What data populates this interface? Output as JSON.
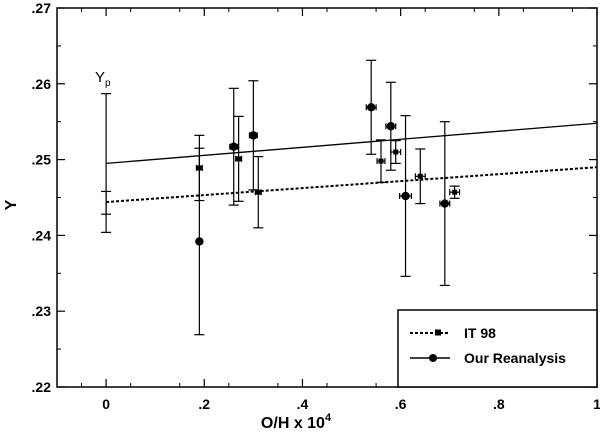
{
  "chart_data": {
    "type": "scatter",
    "xlabel": "O/H x 10",
    "xlabel_superscript": "4",
    "ylabel": "Y",
    "annotation": {
      "text": "Y",
      "subscript": "p"
    },
    "xlim": [
      -0.1,
      1.0
    ],
    "ylim": [
      0.22,
      0.27
    ],
    "x_ticks": [
      0,
      0.2,
      0.4,
      0.6,
      0.8,
      1.0
    ],
    "x_tick_labels": [
      "0",
      ".2",
      ".4",
      ".6",
      ".8",
      "1"
    ],
    "y_ticks": [
      0.22,
      0.23,
      0.24,
      0.25,
      0.26,
      0.27
    ],
    "y_tick_labels": [
      ".22",
      ".23",
      ".24",
      ".25",
      ".26",
      ".27"
    ],
    "grid": false,
    "legend_position": "bottom-right",
    "series": [
      {
        "name": "IT 98",
        "marker": "square",
        "line_style": "dotted",
        "points": [
          {
            "x": 0.19,
            "y": 0.2489,
            "yerr": 0.0043,
            "xerr": 0.006
          },
          {
            "x": 0.27,
            "y": 0.2501,
            "yerr": 0.0056,
            "xerr": 0.006
          },
          {
            "x": 0.31,
            "y": 0.2457,
            "yerr": 0.0047,
            "xerr": 0.006
          },
          {
            "x": 0.56,
            "y": 0.2498,
            "yerr": 0.0028,
            "xerr": 0.008
          },
          {
            "x": 0.59,
            "y": 0.251,
            "yerr": 0.0015,
            "xerr": 0.01
          },
          {
            "x": 0.64,
            "y": 0.2478,
            "yerr": 0.0036,
            "xerr": 0.01
          },
          {
            "x": 0.71,
            "y": 0.2457,
            "yerr": 0.0008,
            "xerr": 0.01
          }
        ],
        "fit": {
          "intercept": 0.2444,
          "slope": 0.0046
        },
        "intercept_error": {
          "x": 0,
          "low": 0.2428,
          "high": 0.2458
        }
      },
      {
        "name": "Our Reanalysis",
        "marker": "circle",
        "line_style": "solid",
        "points": [
          {
            "x": 0.19,
            "y": 0.2392,
            "yerr": 0.0123,
            "xerr": 0.005
          },
          {
            "x": 0.26,
            "y": 0.2517,
            "yerr": 0.0077,
            "xerr": 0.008
          },
          {
            "x": 0.3,
            "y": 0.2532,
            "yerr": 0.0072,
            "xerr": 0.008
          },
          {
            "x": 0.54,
            "y": 0.2569,
            "yerr": 0.0062,
            "xerr": 0.01
          },
          {
            "x": 0.58,
            "y": 0.2544,
            "yerr": 0.0058,
            "xerr": 0.01
          },
          {
            "x": 0.61,
            "y": 0.2452,
            "yerr": 0.0106,
            "xerr": 0.012
          },
          {
            "x": 0.69,
            "y": 0.2442,
            "yerr": 0.0108,
            "xerr": 0.01
          }
        ],
        "fit": {
          "intercept": 0.2495,
          "slope": 0.0053
        },
        "intercept_error": {
          "x": 0,
          "low": 0.2404,
          "high": 0.2587
        }
      }
    ]
  }
}
